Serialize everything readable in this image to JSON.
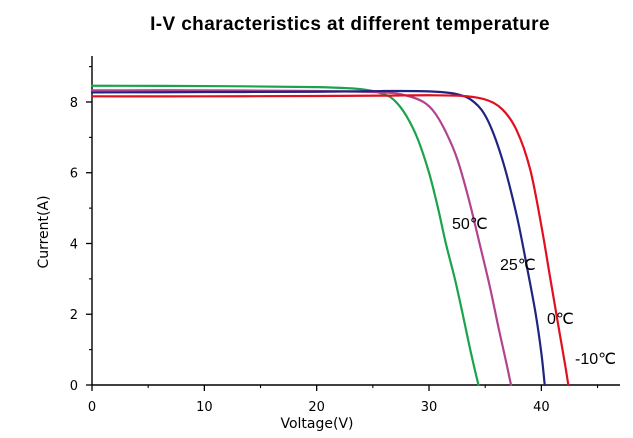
{
  "chart_data": {
    "type": "line",
    "title": "I-V characteristics at different temperature",
    "xlabel": "Voltage(V)",
    "ylabel": "Current(A)",
    "xlim": [
      0,
      47
    ],
    "ylim": [
      0,
      9.3
    ],
    "xticks": [
      0,
      10,
      20,
      30,
      40
    ],
    "yticks": [
      0,
      2,
      4,
      6,
      8
    ],
    "grid": false,
    "legend": "none",
    "series": [
      {
        "label": "50℃",
        "color": "#1aa34a",
        "x": [
          0,
          10,
          20,
          24,
          26,
          27,
          28,
          29,
          30,
          30.8,
          31.5,
          32.3,
          33.0,
          33.6,
          34.1,
          34.4
        ],
        "y": [
          8.46,
          8.45,
          8.42,
          8.36,
          8.22,
          8.02,
          7.6,
          6.95,
          6.0,
          5.0,
          4.0,
          3.0,
          2.0,
          1.1,
          0.4,
          0
        ]
      },
      {
        "label": "25℃",
        "color": "#b0448f",
        "x": [
          0,
          10,
          20,
          26,
          28,
          29.5,
          30.5,
          31.5,
          32.5,
          33.5,
          34.5,
          35.4,
          36.2,
          36.9,
          37.3
        ],
        "y": [
          8.33,
          8.33,
          8.31,
          8.27,
          8.18,
          8.0,
          7.7,
          7.15,
          6.4,
          5.3,
          4.0,
          2.8,
          1.6,
          0.6,
          0
        ]
      },
      {
        "label": "0℃",
        "color": "#1f2480",
        "x": [
          0,
          10,
          20,
          26,
          30,
          32.5,
          34,
          35.2,
          36.5,
          37.8,
          38.8,
          39.5,
          40.0,
          40.3
        ],
        "y": [
          8.27,
          8.28,
          8.29,
          8.31,
          8.3,
          8.22,
          8.0,
          7.5,
          6.4,
          4.8,
          3.2,
          2.0,
          0.9,
          0
        ]
      },
      {
        "label": "-10℃",
        "color": "#e01020",
        "x": [
          0,
          10,
          20,
          26,
          30,
          33,
          35,
          36.5,
          37.8,
          39,
          40,
          40.8,
          41.5,
          42.1,
          42.4
        ],
        "y": [
          8.16,
          8.16,
          8.17,
          8.18,
          8.19,
          8.17,
          8.07,
          7.8,
          7.2,
          6.1,
          4.5,
          3.0,
          1.7,
          0.6,
          0
        ]
      }
    ]
  }
}
